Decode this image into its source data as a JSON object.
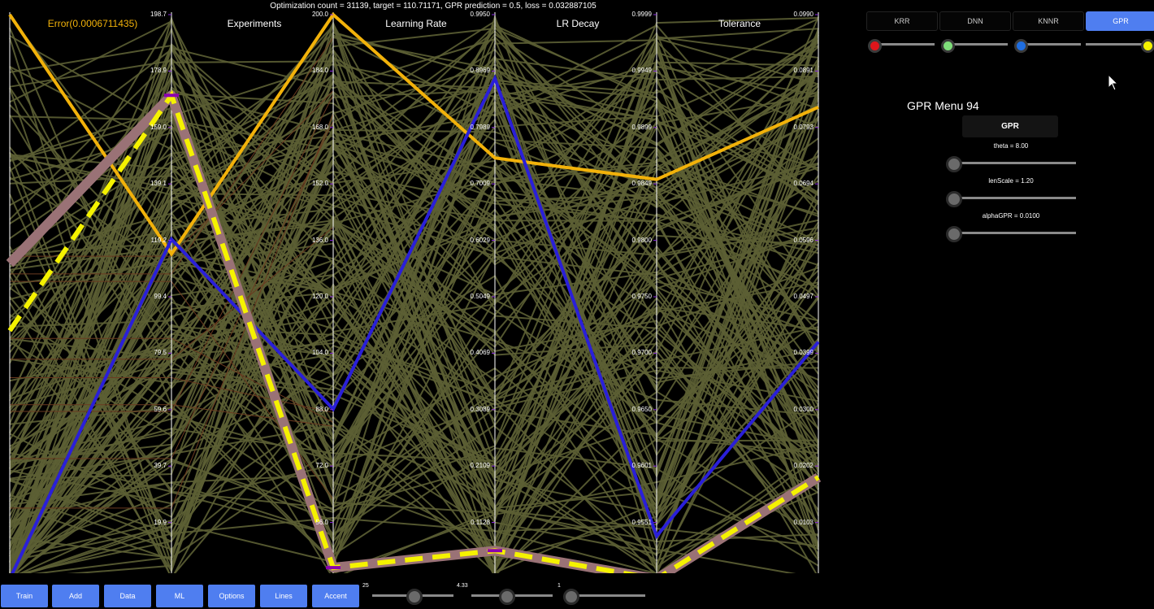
{
  "header": "Optimization count = 31139, target = 110.71171, GPR prediction = 0.5, loss = 0.032887105",
  "axes": [
    {
      "title": "Error(0.0006711435)",
      "ticks": [
        "198.7",
        "178.9",
        "159.0",
        "139.1",
        "119.2",
        "99.4",
        "79.5",
        "59.6",
        "39.7",
        "19.9",
        "0.0007"
      ]
    },
    {
      "title": "Experiments",
      "ticks": [
        "200.0",
        "184.0",
        "168.0",
        "152.0",
        "136.0",
        "120.0",
        "104.0",
        "88.0",
        "72.0",
        "56.0",
        "40.0"
      ]
    },
    {
      "title": "Learning Rate",
      "ticks": [
        "0.9950",
        "0.8969",
        "0.7989",
        "0.7009",
        "0.6029",
        "0.5049",
        "0.4069",
        "0.3089",
        "0.2109",
        "0.1128",
        "0.0148"
      ]
    },
    {
      "title": "LR Decay",
      "ticks": [
        "0.9999",
        "0.9949",
        "0.9899",
        "0.9849",
        "0.9800",
        "0.9750",
        "0.9700",
        "0.9650",
        "0.9601",
        "0.9551",
        "0.9501"
      ]
    },
    {
      "title": "Tolerance",
      "ticks": [
        "0.0990",
        "0.0891",
        "0.0793",
        "0.0694",
        "0.0596",
        "0.0497",
        "0.0399",
        "0.0300",
        "0.0202",
        "0.0103",
        "0.0005"
      ]
    }
  ],
  "colors": {
    "background": "#000000",
    "lines": "#5c5f34",
    "orange": "#f2b20a",
    "blue": "#2a1fd9",
    "mauve": "#9a7276",
    "yellow": "#f5f200",
    "accent": "#4f7ef0"
  },
  "ml_tabs": [
    {
      "label": "KRR",
      "active": false
    },
    {
      "label": "DNN",
      "active": false
    },
    {
      "label": "KNNR",
      "active": false
    },
    {
      "label": "GPR",
      "active": true
    }
  ],
  "model_dots": [
    "#e0161b",
    "#7fde7a",
    "#1f6ee0",
    "#f5f200"
  ],
  "gpr_menu": {
    "title": "GPR Menu 94",
    "button": "GPR",
    "params": [
      {
        "label": "theta = 8.00",
        "level": 0
      },
      {
        "label": "lenScale = 1.20",
        "level": 0
      },
      {
        "label": "alphaGPR = 0.0100",
        "level": 0
      }
    ]
  },
  "toolbar": {
    "buttons": [
      "Train",
      "Add",
      "Data",
      "ML",
      "Options",
      "Lines",
      "Accent"
    ],
    "sliders": [
      {
        "value": "25",
        "max_label": "4.33",
        "level": 0.5
      },
      {
        "value": "",
        "max_label": "1",
        "level": 0.36
      },
      {
        "value": "",
        "max_label": "",
        "level": 0.05
      }
    ]
  }
}
